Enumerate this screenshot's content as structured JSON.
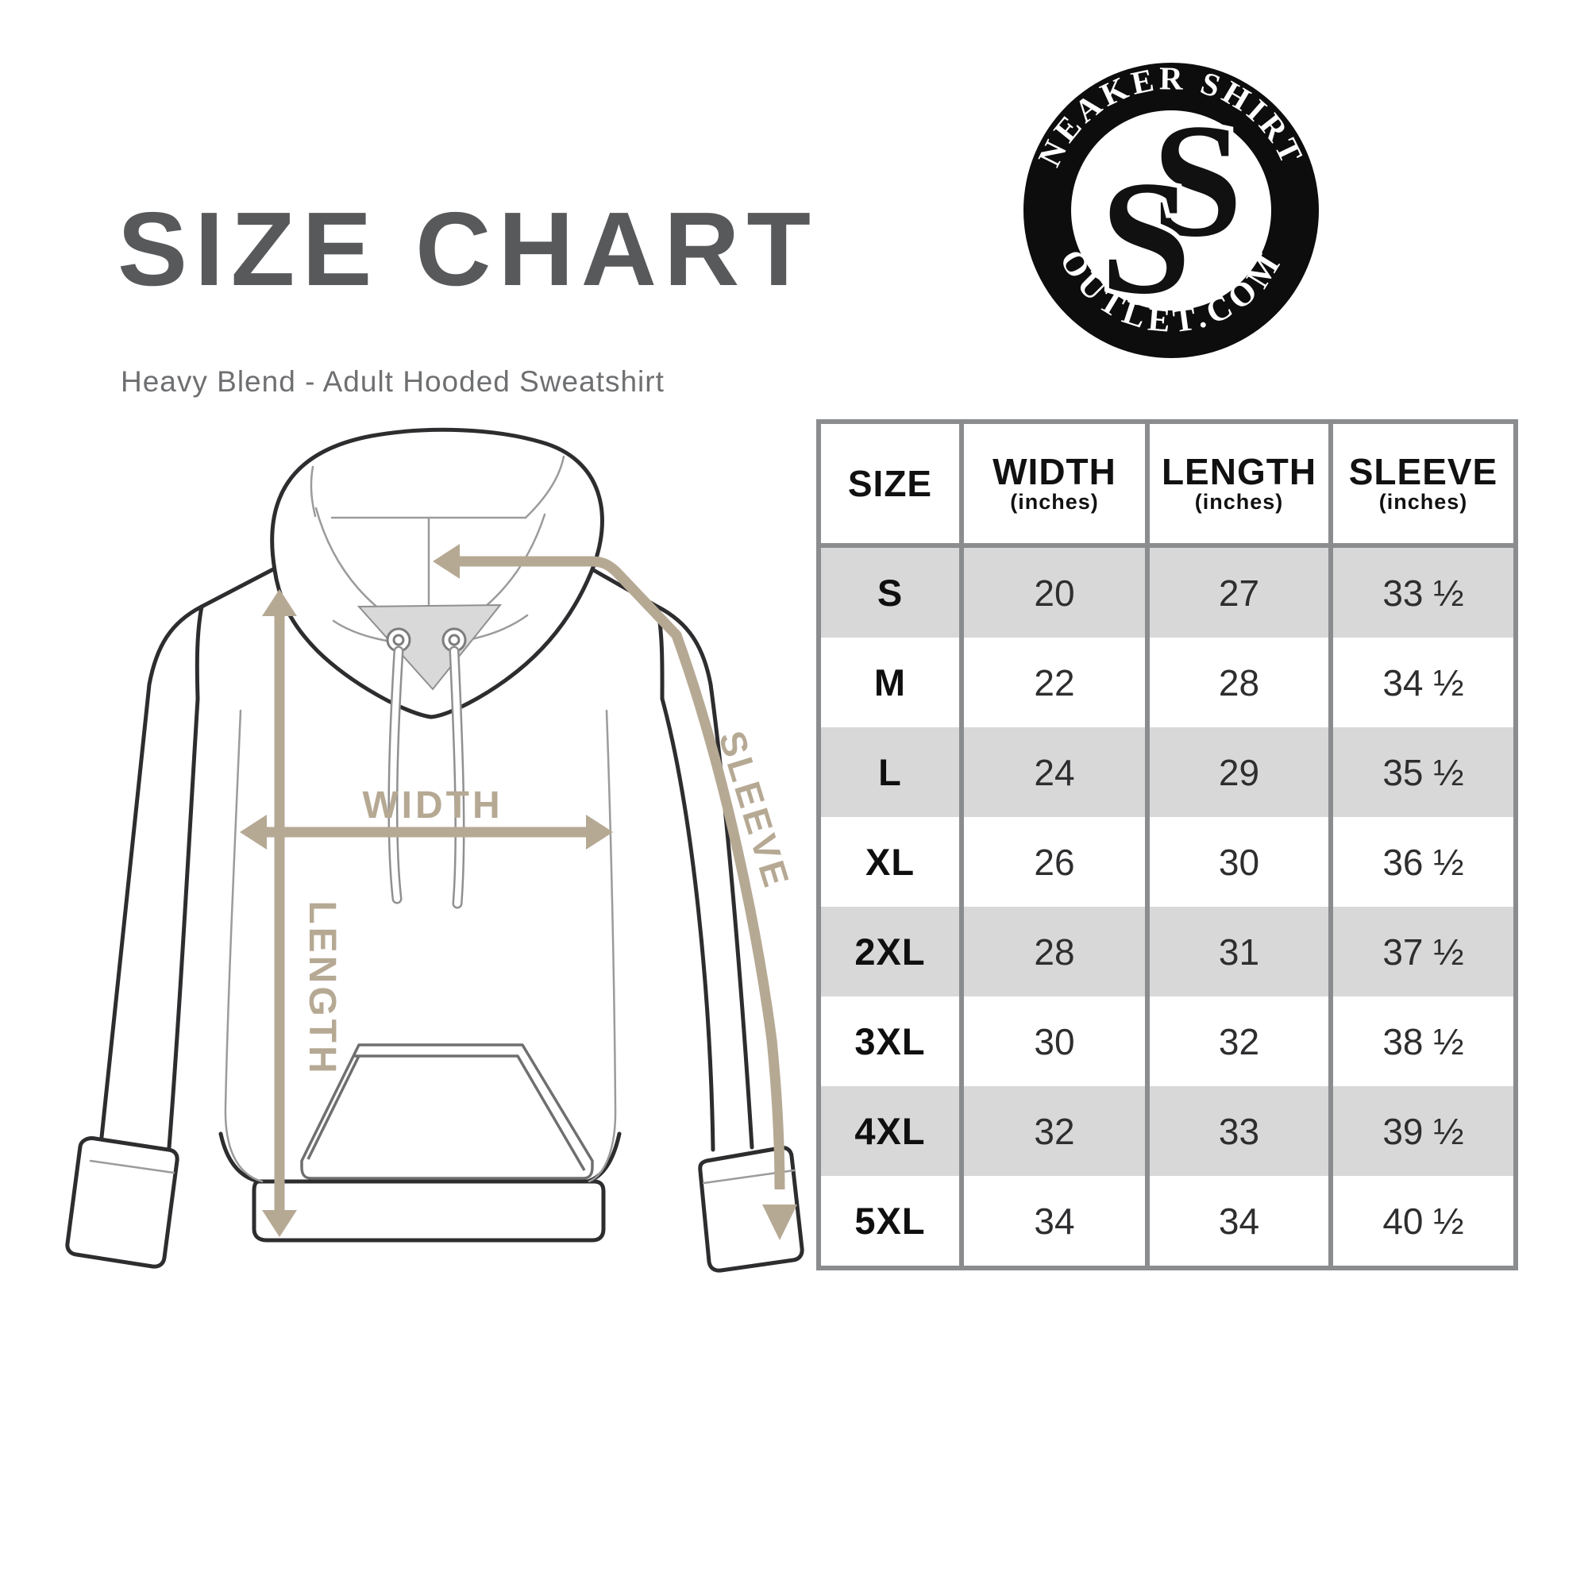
{
  "header": {
    "title": "SIZE CHART",
    "subtitle": "Heavy Blend - Adult Hooded Sweatshirt"
  },
  "logo": {
    "top_text": "SNEAKER SHIRTS",
    "bottom_text": "OUTLET.COM",
    "monogram_letter": "S"
  },
  "diagram": {
    "labels": {
      "width": "WIDTH",
      "length": "LENGTH",
      "sleeve": "SLEEVE"
    },
    "arrow_color": "#b6a994"
  },
  "table": {
    "columns": [
      {
        "label": "SIZE",
        "sub": ""
      },
      {
        "label": "WIDTH",
        "sub": "(inches)"
      },
      {
        "label": "LENGTH",
        "sub": "(inches)"
      },
      {
        "label": "SLEEVE",
        "sub": "(inches)"
      }
    ],
    "rows": [
      {
        "size": "S",
        "width": "20",
        "length": "27",
        "sleeve": "33 ½"
      },
      {
        "size": "M",
        "width": "22",
        "length": "28",
        "sleeve": "34 ½"
      },
      {
        "size": "L",
        "width": "24",
        "length": "29",
        "sleeve": "35 ½"
      },
      {
        "size": "XL",
        "width": "26",
        "length": "30",
        "sleeve": "36 ½"
      },
      {
        "size": "2XL",
        "width": "28",
        "length": "31",
        "sleeve": "37 ½"
      },
      {
        "size": "3XL",
        "width": "30",
        "length": "32",
        "sleeve": "38 ½"
      },
      {
        "size": "4XL",
        "width": "32",
        "length": "33",
        "sleeve": "39 ½"
      },
      {
        "size": "5XL",
        "width": "34",
        "length": "34",
        "sleeve": "40 ½"
      }
    ]
  },
  "colors": {
    "accent_tan": "#b6a994",
    "title_gray": "#58595b",
    "subtitle_gray": "#6e6f71",
    "table_border_gray": "#8a8c8e",
    "row_shade_gray": "#d8d8d8",
    "logo_black": "#0d0d0d"
  },
  "chart_data": {
    "type": "table",
    "title": "SIZE CHART",
    "subtitle": "Heavy Blend - Adult Hooded Sweatshirt",
    "columns": [
      "SIZE",
      "WIDTH (inches)",
      "LENGTH (inches)",
      "SLEEVE (inches)"
    ],
    "rows": [
      [
        "S",
        20,
        27,
        33.5
      ],
      [
        "M",
        22,
        28,
        34.5
      ],
      [
        "L",
        24,
        29,
        35.5
      ],
      [
        "XL",
        26,
        30,
        36.5
      ],
      [
        "2XL",
        28,
        31,
        37.5
      ],
      [
        "3XL",
        30,
        32,
        38.5
      ],
      [
        "4XL",
        32,
        33,
        39.5
      ],
      [
        "5XL",
        34,
        34,
        40.5
      ]
    ]
  }
}
